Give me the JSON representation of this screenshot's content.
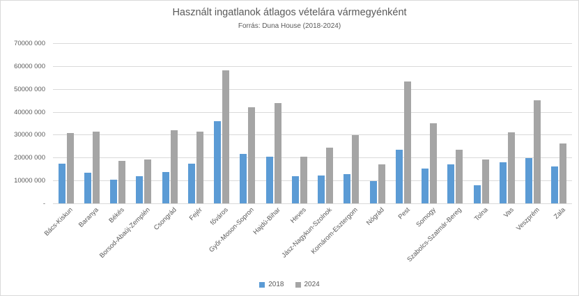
{
  "chart_data": {
    "type": "bar",
    "title": "Használt ingatlanok átlagos vételára vármegyénként",
    "subtitle": "Forrás: Duna House (2018-2024)",
    "categories": [
      "Bács-Kiskun",
      "Baranya",
      "Békés",
      "Borsod-Abaúj-Zemplén",
      "Csongrád",
      "Fejér",
      "főváros",
      "Győr-Moson-Sopron",
      "Hajdú-Bihar",
      "Heves",
      "Jász-Nagykun-Szolnok",
      "Komárom-Esztergom",
      "Nógrád",
      "Pest",
      "Somogy",
      "Szabolcs-Szatmár-Bereg",
      "Tolna",
      "Vas",
      "Veszprém",
      "Zala"
    ],
    "series": [
      {
        "name": "2018",
        "color": "#5b9bd5",
        "values": [
          17300000,
          13300000,
          10500000,
          11800000,
          13800000,
          17300000,
          35800000,
          21500000,
          20500000,
          12000000,
          12200000,
          12800000,
          9800000,
          23300000,
          15200000,
          17000000,
          7800000,
          18100000,
          19900000,
          16200000
        ]
      },
      {
        "name": "2024",
        "color": "#a5a5a5",
        "values": [
          30700000,
          31400000,
          18500000,
          19300000,
          32100000,
          31300000,
          58000000,
          42000000,
          43900000,
          20400000,
          24400000,
          29800000,
          17000000,
          53300000,
          35100000,
          23300000,
          19100000,
          31000000,
          44900000,
          26100000
        ]
      }
    ],
    "ylim": [
      0,
      70000000
    ],
    "ytick_interval": 10000000,
    "ytick_labels_bottom_to_top": [
      "-",
      "10000 000",
      "20000 000",
      "30000 000",
      "40000 000",
      "50000 000",
      "60000 000",
      "70000 000"
    ],
    "grid": true,
    "legend_position": "bottom",
    "axis_text_color": "#595959",
    "gridline_color": "#d9d9d9"
  }
}
